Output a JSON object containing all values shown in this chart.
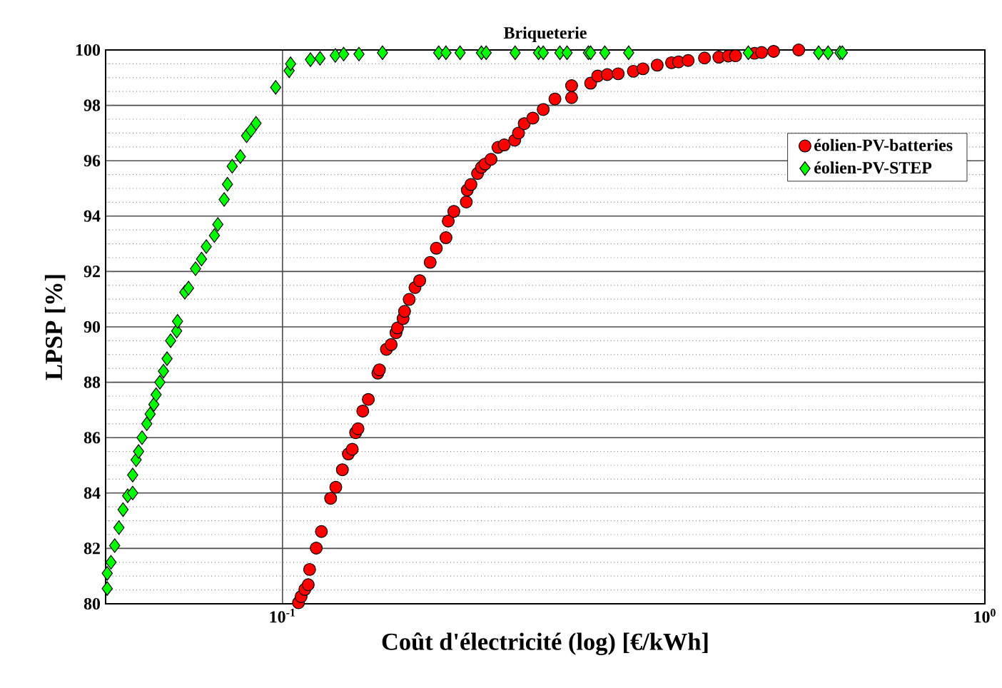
{
  "chart_data": {
    "type": "scatter",
    "title": "Briqueterie",
    "xlabel": "Coût d'électricité (log) [€/kWh]",
    "ylabel": "LPSP [%]",
    "log": "x",
    "grid": true,
    "legend": "top right",
    "xlim": [
      0.056,
      1
    ],
    "ylim": [
      80,
      100
    ],
    "xticks": [
      {
        "value": 0.1,
        "label": "10$^{-1}$"
      },
      {
        "value": 1,
        "label": "10$^{0}$"
      }
    ],
    "yticks": [
      80,
      82,
      84,
      86,
      88,
      90,
      92,
      94,
      96,
      98,
      100
    ],
    "series": [
      {
        "name": "éolien-PV-batteries",
        "color": "#ff0000",
        "marker": "circle",
        "x": [
          0.1054,
          0.1063,
          0.1076,
          0.1088,
          0.1093,
          0.1117,
          0.1136,
          0.1171,
          0.1191,
          0.1217,
          0.1241,
          0.1257,
          0.1271,
          0.1281,
          0.1301,
          0.1325,
          0.1367,
          0.1374,
          0.1406,
          0.1428,
          0.1451,
          0.1458,
          0.1485,
          0.1492,
          0.1515,
          0.1544,
          0.1568,
          0.1623,
          0.1656,
          0.1709,
          0.1722,
          0.1754,
          0.1827,
          0.1833,
          0.1855,
          0.1896,
          0.192,
          0.1943,
          0.1981,
          0.2027,
          0.2069,
          0.2141,
          0.2168,
          0.2209,
          0.2272,
          0.2351,
          0.2443,
          0.258,
          0.258,
          0.2746,
          0.2811,
          0.29,
          0.3006,
          0.3159,
          0.326,
          0.3416,
          0.358,
          0.3664,
          0.3781,
          0.399,
          0.4181,
          0.4314,
          0.4416,
          0.4699,
          0.481,
          0.5003,
          0.5432
        ],
        "values": [
          80.04,
          80.26,
          80.52,
          80.69,
          81.24,
          82.01,
          82.61,
          83.81,
          84.21,
          84.84,
          85.41,
          85.58,
          86.18,
          86.32,
          86.96,
          87.38,
          88.33,
          88.45,
          89.19,
          89.36,
          89.79,
          89.96,
          90.3,
          90.56,
          90.99,
          91.42,
          91.67,
          92.33,
          92.84,
          93.22,
          93.82,
          94.17,
          94.51,
          94.94,
          95.14,
          95.54,
          95.76,
          95.88,
          96.05,
          96.48,
          96.57,
          96.74,
          97.0,
          97.34,
          97.54,
          97.85,
          98.23,
          98.28,
          98.71,
          98.8,
          99.06,
          99.11,
          99.14,
          99.23,
          99.32,
          99.45,
          99.54,
          99.57,
          99.62,
          99.71,
          99.74,
          99.78,
          99.79,
          99.88,
          99.91,
          99.95,
          100.0
        ]
      },
      {
        "name": "éolien-PV-STEP",
        "color": "#00ff00",
        "marker": "diamond",
        "x": [
          0.0563,
          0.0563,
          0.057,
          0.0577,
          0.0585,
          0.0593,
          0.0602,
          0.0612,
          0.0612,
          0.0619,
          0.0624,
          0.0631,
          0.0641,
          0.0648,
          0.0656,
          0.0661,
          0.0669,
          0.0677,
          0.0685,
          0.0693,
          0.0707,
          0.0709,
          0.0726,
          0.0735,
          0.0752,
          0.0767,
          0.0779,
          0.08,
          0.0809,
          0.0826,
          0.0835,
          0.0848,
          0.0871,
          0.0889,
          0.0902,
          0.0917,
          0.0978,
          0.1022,
          0.1027,
          0.1096,
          0.1131,
          0.1189,
          0.1222,
          0.1285,
          0.1388,
          0.1669,
          0.1709,
          0.179,
          0.192,
          0.195,
          0.2144,
          0.2315,
          0.2351,
          0.2483,
          0.2542,
          0.2726,
          0.2746,
          0.2877,
          0.3111,
          0.4605,
          0.5799,
          0.5982,
          0.6218,
          0.6268
        ],
        "values": [
          80.55,
          81.1,
          81.5,
          82.1,
          82.75,
          83.4,
          83.9,
          84.0,
          84.65,
          85.2,
          85.5,
          86.0,
          86.5,
          86.85,
          87.2,
          87.55,
          88.0,
          88.4,
          88.85,
          89.5,
          89.85,
          90.2,
          91.25,
          91.4,
          92.1,
          92.45,
          92.9,
          93.3,
          93.7,
          94.6,
          95.15,
          95.8,
          96.15,
          96.9,
          97.1,
          97.35,
          98.65,
          99.25,
          99.5,
          99.65,
          99.7,
          99.8,
          99.85,
          99.85,
          99.9,
          99.9,
          99.9,
          99.9,
          99.9,
          99.9,
          99.9,
          99.9,
          99.9,
          99.9,
          99.9,
          99.9,
          99.9,
          99.9,
          99.9,
          99.9,
          99.9,
          99.9,
          99.9,
          99.9
        ]
      }
    ]
  }
}
